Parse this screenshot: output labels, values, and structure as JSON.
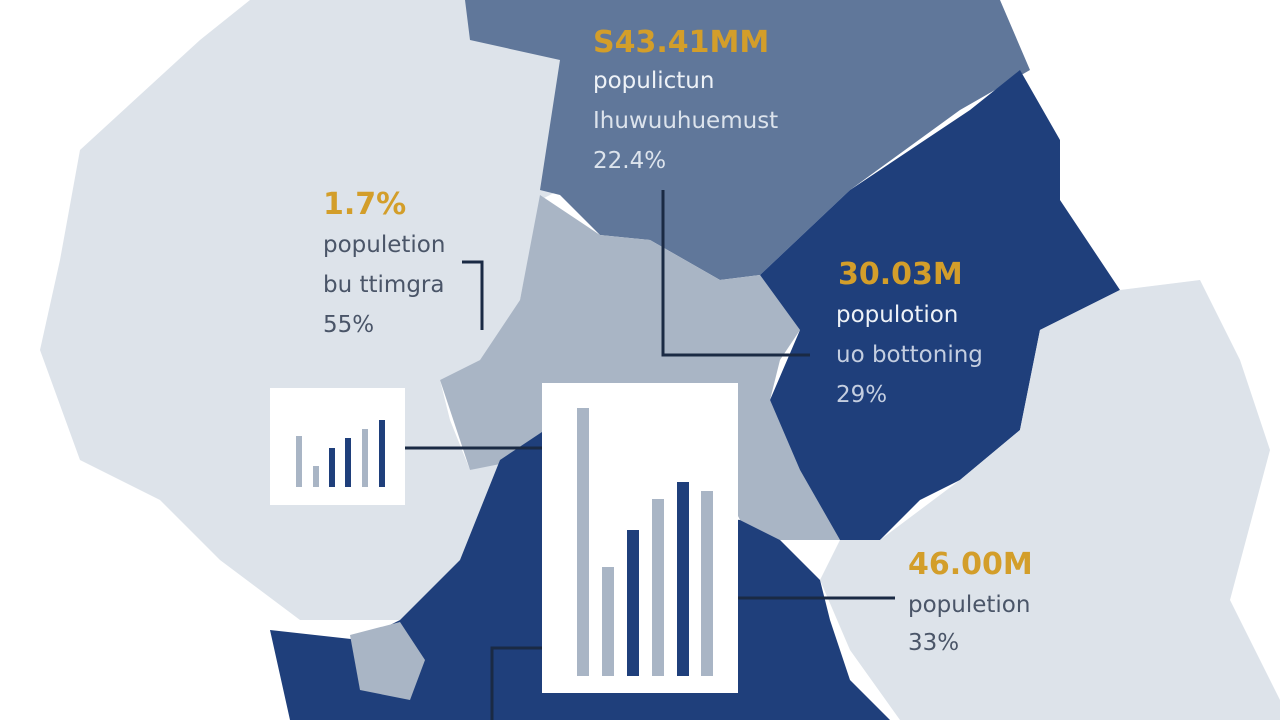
{
  "regions": [
    {
      "value": "S43.41MM",
      "line1": "populictun",
      "line2": "Ihuwuuhuemust",
      "share": "22.4%"
    },
    {
      "value": "1.7%",
      "line1": "populetion",
      "line2": "bu ttimgra",
      "share": "55%"
    },
    {
      "value": "30.03M",
      "line1": "populotion",
      "line2": "uo bottoning",
      "share": "29%"
    },
    {
      "value": "46.00M",
      "line1": "populetion",
      "share": "33%"
    }
  ]
}
